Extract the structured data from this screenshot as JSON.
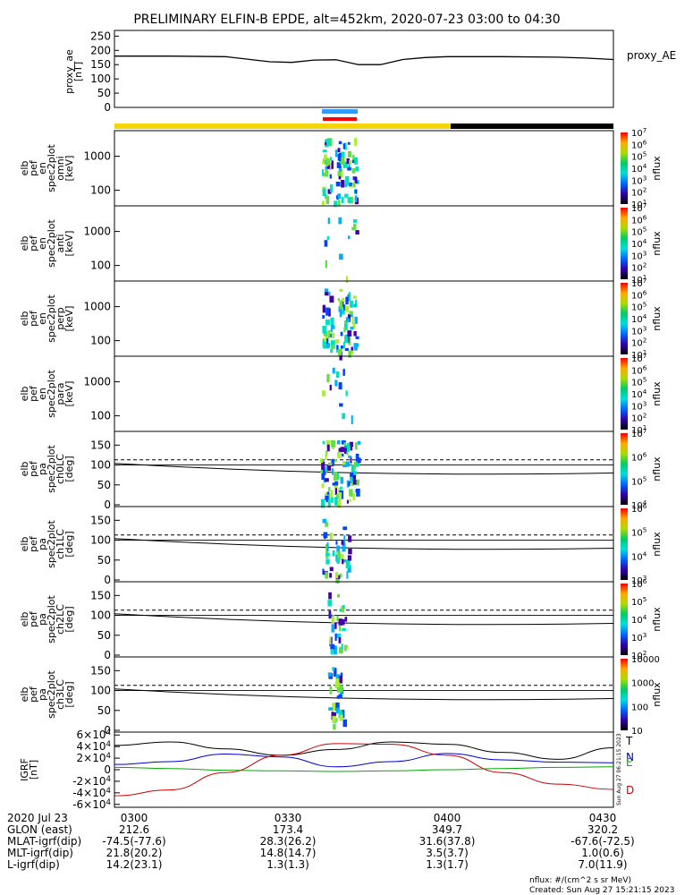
{
  "title": "PRELIMINARY ELFIN-B EPDE, alt=452km, 2020-07-23 03:00 to 04:30",
  "chart_data": [
    {
      "type": "line",
      "panel": "proxy_ae",
      "ylabel": [
        "proxy_ae",
        "[nT]"
      ],
      "legend": "proxy_AE",
      "yticks": [
        0,
        50,
        100,
        150,
        200,
        250
      ],
      "ylim": [
        0,
        270
      ],
      "x": [
        "0300",
        "0310",
        "0320",
        "0328",
        "0332",
        "0336",
        "0340",
        "0344",
        "0348",
        "0352",
        "0356",
        "0400",
        "0410",
        "0420",
        "0425",
        "0430"
      ],
      "values": [
        180,
        180,
        178,
        160,
        158,
        166,
        167,
        150,
        150,
        168,
        175,
        178,
        178,
        176,
        173,
        168
      ]
    },
    {
      "type": "heatmap",
      "panel": "spec2plot_omni",
      "ylabel": [
        "elb",
        "pef",
        "en",
        "spec2plot",
        "omni",
        "[keV]"
      ],
      "yticks": [
        "100",
        "1000"
      ],
      "ylog": true,
      "colorbar": {
        "label": "nflux",
        "ticks": [
          "10^1",
          "10^2",
          "10^3",
          "10^4",
          "10^5",
          "10^6",
          "10^7"
        ]
      }
    },
    {
      "type": "heatmap",
      "panel": "spec2plot_anti",
      "ylabel": [
        "elb",
        "pef",
        "en",
        "spec2plot",
        "anti",
        "[keV]"
      ],
      "yticks": [
        "100",
        "1000"
      ],
      "ylog": true,
      "colorbar": {
        "label": "nflux",
        "ticks": [
          "10^1",
          "10^2",
          "10^3",
          "10^4",
          "10^5",
          "10^6",
          "10^7"
        ]
      }
    },
    {
      "type": "heatmap",
      "panel": "spec2plot_perp",
      "ylabel": [
        "elb",
        "pef",
        "en",
        "spec2plot",
        "perp",
        "[keV]"
      ],
      "yticks": [
        "100",
        "1000"
      ],
      "ylog": true,
      "colorbar": {
        "label": "nflux",
        "ticks": [
          "10^1",
          "10^2",
          "10^3",
          "10^4",
          "10^5",
          "10^6",
          "10^7"
        ]
      }
    },
    {
      "type": "heatmap",
      "panel": "spec2plot_para",
      "ylabel": [
        "elb",
        "pef",
        "en",
        "spec2plot",
        "para",
        "[keV]"
      ],
      "yticks": [
        "100",
        "1000"
      ],
      "ylog": true,
      "colorbar": {
        "label": "nflux",
        "ticks": [
          "10^1",
          "10^2",
          "10^3",
          "10^4",
          "10^5",
          "10^6",
          "10^7"
        ]
      }
    },
    {
      "type": "heatmap",
      "panel": "ch0LC",
      "ylabel": [
        "elb",
        "pef",
        "pa",
        "spec2plot",
        "ch0LC",
        "[deg]"
      ],
      "yticks": [
        0,
        50,
        100,
        150
      ],
      "ylim": [
        0,
        180
      ],
      "colorbar": {
        "label": "nflux",
        "ticks": [
          "10^4",
          "10^5",
          "10^6",
          "10^7"
        ]
      }
    },
    {
      "type": "heatmap",
      "panel": "ch1LC",
      "ylabel": [
        "elb",
        "pef",
        "pa",
        "spec2plot",
        "ch1LC",
        "[deg]"
      ],
      "yticks": [
        0,
        50,
        100,
        150
      ],
      "ylim": [
        0,
        180
      ],
      "colorbar": {
        "label": "nflux",
        "ticks": [
          "10^3",
          "10^4",
          "10^5",
          "10^6"
        ]
      }
    },
    {
      "type": "heatmap",
      "panel": "ch2LC",
      "ylabel": [
        "elb",
        "pef",
        "pa",
        "spec2plot",
        "ch2LC",
        "[deg]"
      ],
      "yticks": [
        0,
        50,
        100,
        150
      ],
      "ylim": [
        0,
        180
      ],
      "colorbar": {
        "label": "nflux",
        "ticks": [
          "10^2",
          "10^3",
          "10^4",
          "10^5",
          "10^6"
        ]
      }
    },
    {
      "type": "heatmap",
      "panel": "ch3LC",
      "ylabel": [
        "elb",
        "pef",
        "pa",
        "spec2plot",
        "ch3LC",
        "[deg]"
      ],
      "yticks": [
        0,
        50,
        100,
        150
      ],
      "ylim": [
        0,
        180
      ],
      "colorbar": {
        "label": "nflux",
        "ticks": [
          "10",
          "100",
          "1000",
          "10000"
        ]
      }
    },
    {
      "type": "line",
      "panel": "IGRF",
      "ylabel": [
        "IGRF",
        "[nT]"
      ],
      "yticks": [
        "-6×10^4",
        "-4×10^4",
        "-2×10^4",
        "0",
        "2×10^4",
        "4×10^4",
        "6×10^4"
      ],
      "ylim": [
        -65000,
        65000
      ],
      "x": [
        0,
        10,
        20,
        30,
        40,
        50,
        60,
        70,
        80,
        90
      ],
      "series": [
        {
          "name": "T",
          "color": "#000000",
          "values": [
            42000,
            48000,
            36000,
            25000,
            35000,
            48000,
            44000,
            30000,
            18000,
            38000
          ]
        },
        {
          "name": "N",
          "color": "#0000cc",
          "values": [
            9000,
            14000,
            27000,
            22000,
            5000,
            14000,
            28000,
            17000,
            13000,
            12000
          ]
        },
        {
          "name": "E",
          "color": "#00aa00",
          "values": [
            4000,
            2000,
            -1000,
            -2000,
            -3000,
            -2000,
            0,
            2000,
            4000,
            5000
          ]
        },
        {
          "name": "D",
          "color": "#cc0000",
          "values": [
            -45000,
            -35000,
            -5000,
            25000,
            45000,
            44000,
            25000,
            -5000,
            -25000,
            -34000
          ]
        }
      ]
    }
  ],
  "bars": {
    "top_colors": [
      "#3399ff",
      "#ff0000"
    ],
    "status_colors": [
      "#f5d50a",
      "#000000"
    ]
  },
  "colorbar_colors": [
    "#ff0000",
    "#ffaa00",
    "#aadd00",
    "#00cc66",
    "#00dddd",
    "#0066ff",
    "#3300aa",
    "#000000"
  ],
  "igrf_side_note": "Sun Aug 27 06:21:15 2023",
  "footer": {
    "row_labels": [
      "2020 Jul 23",
      "GLON (east)",
      "MLAT-igrf(dip)",
      "MLT-igrf(dip)",
      "L-igrf(dip)"
    ],
    "columns": [
      {
        "time": "0300",
        "values": [
          "212.6",
          "-74.5(-77.6)",
          "21.8(20.2)",
          "14.2(23.1)"
        ]
      },
      {
        "time": "0330",
        "values": [
          "173.4",
          "28.3(26.2)",
          "14.8(14.7)",
          "1.3(1.3)"
        ]
      },
      {
        "time": "0400",
        "values": [
          "349.7",
          "31.6(37.8)",
          "3.5(3.7)",
          "1.3(1.7)"
        ]
      },
      {
        "time": "0430",
        "values": [
          "320.2",
          "-67.6(-72.5)",
          "1.0(0.6)",
          "7.0(11.9)"
        ]
      }
    ],
    "note_units": "nflux: #/(cm^2 s sr MeV)",
    "note_created": "Created: Sun Aug 27 15:21:15 2023"
  }
}
